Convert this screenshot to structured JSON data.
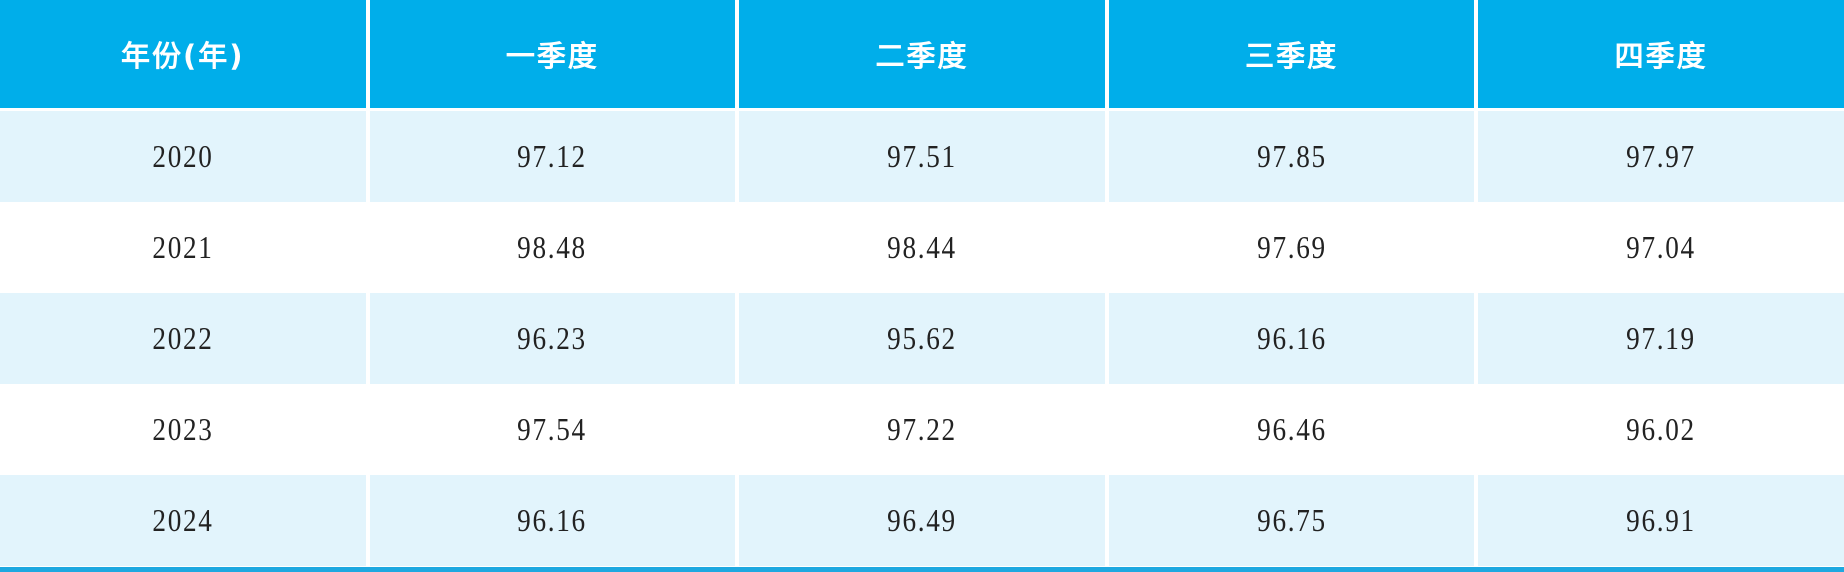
{
  "table": {
    "headers": [
      "年份(年)",
      "一季度",
      "二季度",
      "三季度",
      "四季度"
    ],
    "rows": [
      [
        "2020",
        "97.12",
        "97.51",
        "97.85",
        "97.97"
      ],
      [
        "2021",
        "98.48",
        "98.44",
        "97.69",
        "97.04"
      ],
      [
        "2022",
        "96.23",
        "95.62",
        "96.16",
        "97.19"
      ],
      [
        "2023",
        "97.54",
        "97.22",
        "96.46",
        "96.02"
      ],
      [
        "2024",
        "96.16",
        "96.49",
        "96.75",
        "96.91"
      ]
    ]
  },
  "colors": {
    "header": "#00aeea",
    "alt_row": "#e2f4fc",
    "rule": "#1ea8e0"
  }
}
